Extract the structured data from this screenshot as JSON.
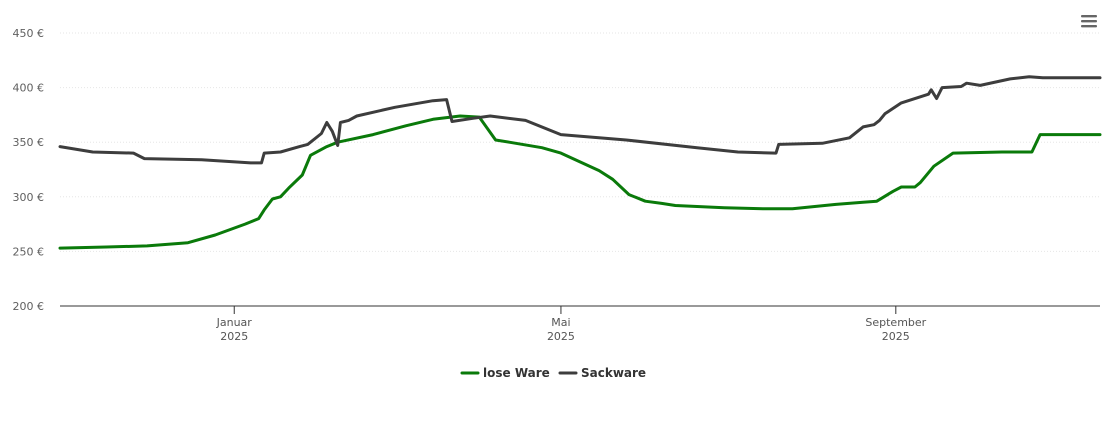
{
  "chart_data": {
    "type": "line",
    "title": "",
    "xlabel": "",
    "ylabel": "",
    "y_tick_labels": [
      "200 €",
      "250 €",
      "300 €",
      "350 €",
      "400 €",
      "450 €"
    ],
    "y_ticks": [
      200,
      250,
      300,
      350,
      400,
      450
    ],
    "ylim": [
      200,
      450
    ],
    "xlim": [
      "2024-10-29",
      "2025-11-15"
    ],
    "x_ticks": [
      {
        "date": "2025-01-01",
        "month": "Januar",
        "year": "2025"
      },
      {
        "date": "2025-05-01",
        "month": "Mai",
        "year": "2025"
      },
      {
        "date": "2025-09-01",
        "month": "September",
        "year": "2025"
      }
    ],
    "grid": true,
    "legend_position": "bottom-center",
    "series": [
      {
        "name": "lose Ware",
        "color": "#0a7a0a",
        "points": [
          [
            "2024-10-29",
            253
          ],
          [
            "2024-11-15",
            254
          ],
          [
            "2024-11-30",
            255
          ],
          [
            "2024-12-15",
            258
          ],
          [
            "2024-12-25",
            265
          ],
          [
            "2025-01-05",
            275
          ],
          [
            "2025-01-10",
            280
          ],
          [
            "2025-01-12",
            288
          ],
          [
            "2025-01-15",
            298
          ],
          [
            "2025-01-18",
            300
          ],
          [
            "2025-01-21",
            308
          ],
          [
            "2025-01-26",
            320
          ],
          [
            "2025-01-29",
            338
          ],
          [
            "2025-02-04",
            346
          ],
          [
            "2025-02-08",
            350
          ],
          [
            "2025-02-21",
            357
          ],
          [
            "2025-03-05",
            365
          ],
          [
            "2025-03-15",
            371
          ],
          [
            "2025-03-25",
            374
          ],
          [
            "2025-04-01",
            373
          ],
          [
            "2025-04-07",
            352
          ],
          [
            "2025-04-12",
            350
          ],
          [
            "2025-04-24",
            345
          ],
          [
            "2025-05-01",
            340
          ],
          [
            "2025-05-15",
            324
          ],
          [
            "2025-05-20",
            316
          ],
          [
            "2025-05-26",
            302
          ],
          [
            "2025-06-01",
            296
          ],
          [
            "2025-06-07",
            294
          ],
          [
            "2025-06-12",
            292
          ],
          [
            "2025-06-30",
            290
          ],
          [
            "2025-07-15",
            289
          ],
          [
            "2025-07-25",
            289
          ],
          [
            "2025-08-10",
            293
          ],
          [
            "2025-08-20",
            295
          ],
          [
            "2025-08-25",
            296
          ],
          [
            "2025-08-31",
            305
          ],
          [
            "2025-09-03",
            309
          ],
          [
            "2025-09-08",
            309
          ],
          [
            "2025-09-10",
            313
          ],
          [
            "2025-09-15",
            328
          ],
          [
            "2025-09-22",
            340
          ],
          [
            "2025-10-10",
            341
          ],
          [
            "2025-10-21",
            341
          ],
          [
            "2025-10-24",
            357
          ],
          [
            "2025-11-15",
            357
          ]
        ]
      },
      {
        "name": "Sackware",
        "color": "#3d3d3d",
        "points": [
          [
            "2024-10-29",
            346
          ],
          [
            "2024-11-10",
            341
          ],
          [
            "2024-11-25",
            340
          ],
          [
            "2024-11-29",
            335
          ],
          [
            "2024-12-20",
            334
          ],
          [
            "2025-01-07",
            331
          ],
          [
            "2025-01-11",
            331
          ],
          [
            "2025-01-12",
            340
          ],
          [
            "2025-01-18",
            341
          ],
          [
            "2025-01-25",
            346
          ],
          [
            "2025-01-28",
            348
          ],
          [
            "2025-02-02",
            358
          ],
          [
            "2025-02-04",
            368
          ],
          [
            "2025-02-06",
            360
          ],
          [
            "2025-02-08",
            347
          ],
          [
            "2025-02-09",
            368
          ],
          [
            "2025-02-12",
            370
          ],
          [
            "2025-02-15",
            374
          ],
          [
            "2025-03-01",
            382
          ],
          [
            "2025-03-15",
            388
          ],
          [
            "2025-03-20",
            389
          ],
          [
            "2025-03-22",
            369
          ],
          [
            "2025-03-30",
            372
          ],
          [
            "2025-04-05",
            374
          ],
          [
            "2025-04-18",
            370
          ],
          [
            "2025-05-01",
            357
          ],
          [
            "2025-05-25",
            352
          ],
          [
            "2025-06-20",
            345
          ],
          [
            "2025-07-05",
            341
          ],
          [
            "2025-07-19",
            340
          ],
          [
            "2025-07-20",
            348
          ],
          [
            "2025-08-05",
            349
          ],
          [
            "2025-08-15",
            354
          ],
          [
            "2025-08-20",
            364
          ],
          [
            "2025-08-24",
            366
          ],
          [
            "2025-08-26",
            370
          ],
          [
            "2025-08-28",
            376
          ],
          [
            "2025-09-03",
            386
          ],
          [
            "2025-09-13",
            394
          ],
          [
            "2025-09-14",
            398
          ],
          [
            "2025-09-16",
            390
          ],
          [
            "2025-09-18",
            400
          ],
          [
            "2025-09-25",
            401
          ],
          [
            "2025-09-27",
            404
          ],
          [
            "2025-10-02",
            402
          ],
          [
            "2025-10-13",
            408
          ],
          [
            "2025-10-20",
            410
          ],
          [
            "2025-10-25",
            409
          ],
          [
            "2025-11-15",
            409
          ]
        ]
      }
    ]
  },
  "toolbar": {
    "menu_icon": "hamburger-menu-icon"
  }
}
